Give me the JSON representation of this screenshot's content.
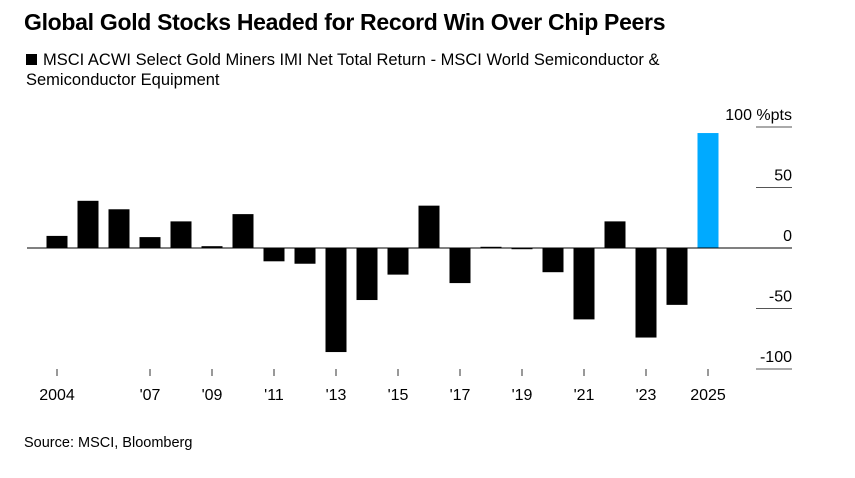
{
  "chart_data": {
    "type": "bar",
    "title": "Global Gold Stocks Headed for Record Win Over Chip Peers",
    "legend": [
      {
        "name": "MSCI ACWI Select Gold Miners IMI Net Total Return - MSCI World Semiconductor & Semiconductor Equipment",
        "color": "#000000"
      }
    ],
    "unit": "%pts",
    "categories": [
      2004,
      2005,
      2006,
      2007,
      2008,
      2009,
      2010,
      2011,
      2012,
      2013,
      2014,
      2015,
      2016,
      2017,
      2018,
      2019,
      2020,
      2021,
      2022,
      2023,
      2024,
      2025
    ],
    "values": [
      10,
      39,
      32,
      9,
      22,
      1.5,
      28,
      -11,
      -13,
      -86,
      -43,
      -22,
      35,
      -29,
      1,
      -1,
      -20,
      -59,
      22,
      -74,
      -47,
      95
    ],
    "bar_color": "#000000",
    "highlight_color": "#00AAFF",
    "highlight_category": 2025,
    "x_tick_labels": [
      {
        "year": 2004,
        "label": "2004"
      },
      {
        "year": 2007,
        "label": "'07"
      },
      {
        "year": 2009,
        "label": "'09"
      },
      {
        "year": 2011,
        "label": "'11"
      },
      {
        "year": 2013,
        "label": "'13"
      },
      {
        "year": 2015,
        "label": "'15"
      },
      {
        "year": 2017,
        "label": "'17"
      },
      {
        "year": 2019,
        "label": "'19"
      },
      {
        "year": 2021,
        "label": "'21"
      },
      {
        "year": 2023,
        "label": "'23"
      },
      {
        "year": 2025,
        "label": "2025"
      }
    ],
    "y_ticks": [
      {
        "value": 100,
        "label": "100 %pts"
      },
      {
        "value": 50,
        "label": "50"
      },
      {
        "value": 0,
        "label": "0"
      },
      {
        "value": -50,
        "label": "-50"
      },
      {
        "value": -100,
        "label": "-100"
      }
    ],
    "ylim": [
      -100,
      100
    ],
    "y_axis_side": "right",
    "grid": false,
    "legend_position": "top-left"
  },
  "source": "Source: MSCI, Bloomberg"
}
